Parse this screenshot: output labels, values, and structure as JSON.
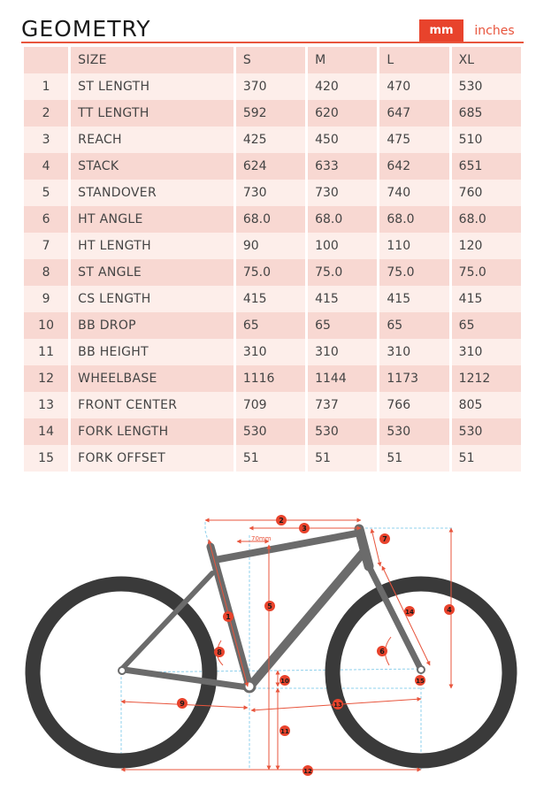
{
  "header": {
    "title": "GEOMETRY",
    "unit_mm": "mm",
    "unit_inches": "inches"
  },
  "table": {
    "columns": [
      "",
      "SIZE",
      "S",
      "M",
      "L",
      "XL"
    ],
    "rows": [
      [
        "1",
        "ST LENGTH",
        "370",
        "420",
        "470",
        "530"
      ],
      [
        "2",
        "TT LENGTH",
        "592",
        "620",
        "647",
        "685"
      ],
      [
        "3",
        "REACH",
        "425",
        "450",
        "475",
        "510"
      ],
      [
        "4",
        "STACK",
        "624",
        "633",
        "642",
        "651"
      ],
      [
        "5",
        "STANDOVER",
        "730",
        "730",
        "740",
        "760"
      ],
      [
        "6",
        "HT ANGLE",
        "68.0",
        "68.0",
        "68.0",
        "68.0"
      ],
      [
        "7",
        "HT LENGTH",
        "90",
        "100",
        "110",
        "120"
      ],
      [
        "8",
        "ST ANGLE",
        "75.0",
        "75.0",
        "75.0",
        "75.0"
      ],
      [
        "9",
        "CS LENGTH",
        "415",
        "415",
        "415",
        "415"
      ],
      [
        "10",
        "BB DROP",
        "65",
        "65",
        "65",
        "65"
      ],
      [
        "11",
        "BB HEIGHT",
        "310",
        "310",
        "310",
        "310"
      ],
      [
        "12",
        "WHEELBASE",
        "1116",
        "1144",
        "1173",
        "1212"
      ],
      [
        "13",
        "FRONT CENTER",
        "709",
        "737",
        "766",
        "805"
      ],
      [
        "14",
        "FORK LENGTH",
        "530",
        "530",
        "530",
        "530"
      ],
      [
        "15",
        "FORK OFFSET",
        "51",
        "51",
        "51",
        "51"
      ]
    ]
  },
  "diagram": {
    "offset_label": "70mm",
    "markers": [
      "1",
      "2",
      "3",
      "4",
      "5",
      "6",
      "7",
      "8",
      "9",
      "10",
      "11",
      "12",
      "13",
      "14",
      "15"
    ]
  },
  "colors": {
    "accent": "#e8432c",
    "row_odd": "#f8d8d2",
    "row_even": "#fdeeea",
    "tube": "#6b6b6b",
    "tire": "#3a3a3a",
    "dim_line": "#e8553d",
    "guide_line": "#8fd0ec"
  }
}
